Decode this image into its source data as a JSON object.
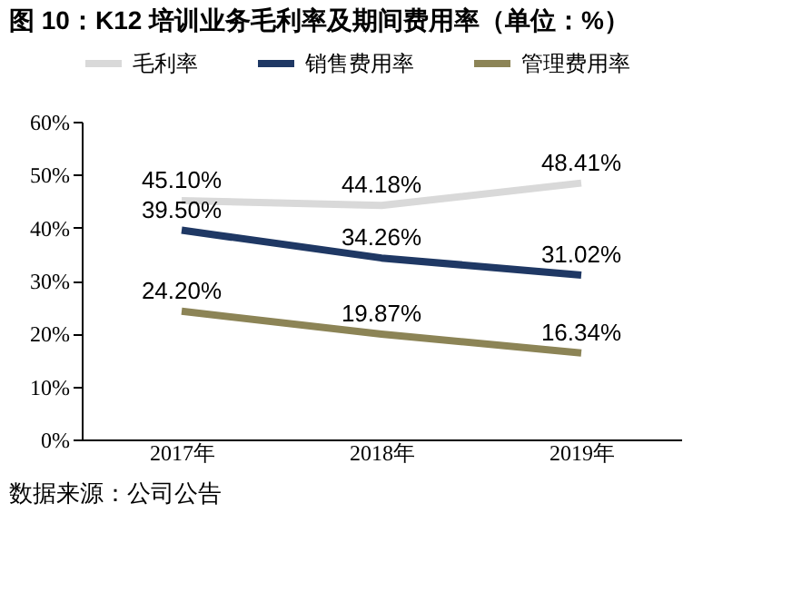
{
  "chart_data": {
    "type": "line",
    "title": "图 10：K12 培训业务毛利率及期间费用率（单位：%）",
    "categories": [
      "2017年",
      "2018年",
      "2019年"
    ],
    "series": [
      {
        "name": "毛利率",
        "color": "#d9d9d9",
        "values": [
          45.1,
          44.18,
          48.41
        ],
        "value_labels": [
          "45.10%",
          "44.18%",
          "48.41%"
        ]
      },
      {
        "name": "销售费用率",
        "color": "#1f3864",
        "values": [
          39.5,
          34.26,
          31.02
        ],
        "value_labels": [
          "39.50%",
          "34.26%",
          "31.02%"
        ]
      },
      {
        "name": "管理费用率",
        "color": "#8c8456",
        "values": [
          24.2,
          19.87,
          16.34
        ],
        "value_labels": [
          "24.20%",
          "19.87%",
          "16.34%"
        ]
      }
    ],
    "ylim": [
      0,
      60
    ],
    "yticks": [
      {
        "value": 0,
        "label": "0%"
      },
      {
        "value": 10,
        "label": "10%"
      },
      {
        "value": 20,
        "label": "20%"
      },
      {
        "value": 30,
        "label": "30%"
      },
      {
        "value": 40,
        "label": "40%"
      },
      {
        "value": 50,
        "label": "50%"
      },
      {
        "value": 60,
        "label": "60%"
      }
    ],
    "grid": false,
    "legend": "top",
    "marker": "none",
    "line_style": "solid",
    "annotations": [
      "数据来源：公司公告"
    ]
  }
}
